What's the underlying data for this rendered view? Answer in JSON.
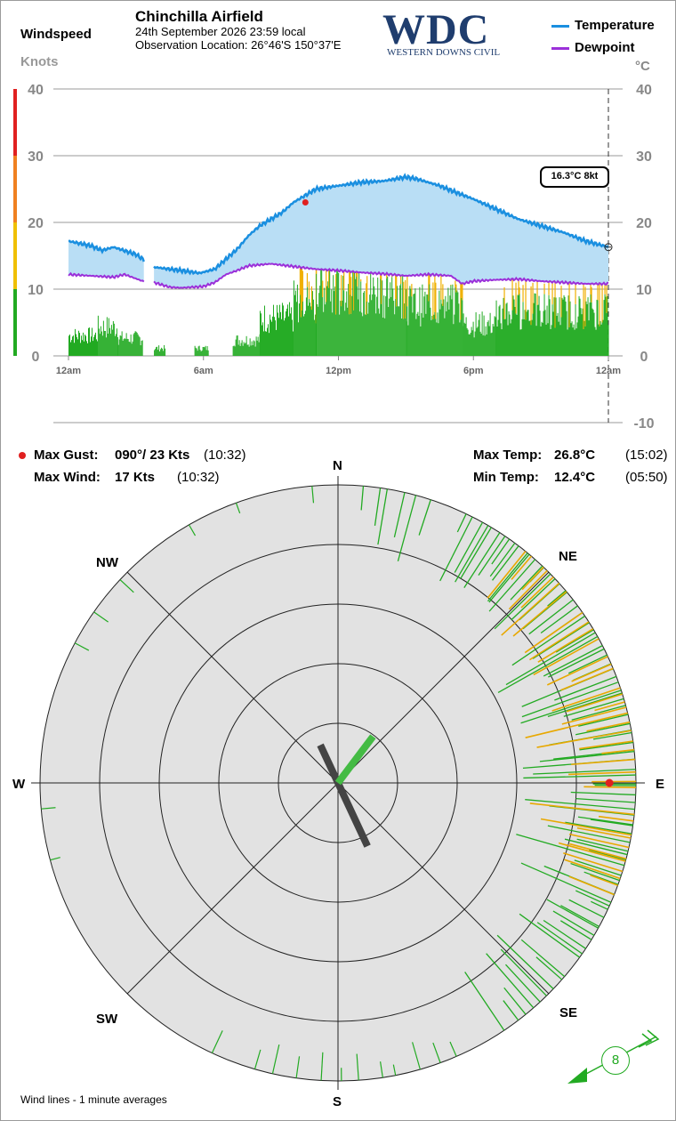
{
  "header": {
    "windspeed_label": "Windspeed",
    "knots_label": "Knots",
    "station_name": "Chinchilla Airfield",
    "date_line": "24th September 2026  23:59 local",
    "location_line": "Observation Location:  26°46'S 150°37'E",
    "logo_text": "WDC",
    "logo_subtext": "WESTERN DOWNS CIVIL",
    "logo_color": "#1f3d6e",
    "legend": [
      {
        "label": "Temperature",
        "color": "#1a8fe0"
      },
      {
        "label": "Dewpoint",
        "color": "#9b30d9"
      }
    ],
    "temp_unit": "°C"
  },
  "current_readout": "16.3°C  8kt",
  "stats": {
    "max_gust_label": "Max Gust:",
    "max_gust_value": "090°/  23 Kts",
    "max_gust_time": "(10:32)",
    "max_wind_label": "Max Wind:",
    "max_wind_value": "17 Kts",
    "max_wind_time": "(10:32)",
    "max_temp_label": "Max Temp:",
    "max_temp_value": "26.8°C",
    "max_temp_time": "(15:02)",
    "min_temp_label": "Min Temp:",
    "min_temp_value": "12.4°C",
    "min_temp_time": "(05:50)"
  },
  "compass": {
    "labels": {
      "n": "N",
      "ne": "NE",
      "e": "E",
      "se": "SE",
      "s": "S",
      "sw": "SW",
      "w": "W",
      "nw": "NW"
    },
    "footer_note": "Wind lines - 1 minute averages",
    "current_speed": "8",
    "max_gust_dir_deg": 90,
    "max_gust_kts": 23,
    "max_wind_kts": 17,
    "resultant_dir_deg": 155,
    "resultant_len": 0.52,
    "green_vector_dir_deg": 37,
    "green_vector_len": 0.28,
    "ring_knots": [
      5,
      10,
      15,
      20
    ],
    "current_dir_deg": 240
  },
  "chart_data": {
    "type": "line",
    "x_ticks": [
      "12am",
      "6am",
      "12pm",
      "6pm",
      "12am"
    ],
    "x_tick_hours": [
      0,
      6,
      12,
      18,
      24
    ],
    "y_left_ticks": [
      0,
      10,
      20,
      30,
      40
    ],
    "y_right_ticks": [
      40,
      30,
      20,
      10,
      0,
      -10
    ],
    "ylim_left": [
      0,
      40
    ],
    "ylim_right": [
      -10,
      40
    ],
    "windspeed_color_bands": [
      {
        "from": 0,
        "to": 10,
        "color": "#22aa22"
      },
      {
        "from": 10,
        "to": 20,
        "color": "#f0c000"
      },
      {
        "from": 20,
        "to": 30,
        "color": "#f08020"
      },
      {
        "from": 30,
        "to": 40,
        "color": "#e02020"
      }
    ],
    "series": [
      {
        "name": "Temperature",
        "color": "#1a8fe0",
        "x": [
          0,
          1,
          1.5,
          2,
          3,
          3.3,
          3.8,
          4.5,
          5,
          5.83,
          6.5,
          7,
          7.5,
          8,
          8.5,
          9,
          9.5,
          10,
          10.5,
          11,
          12,
          13,
          14,
          14.5,
          15,
          15.5,
          16,
          16.5,
          17,
          18,
          19,
          20,
          21,
          22,
          23,
          24
        ],
        "y": [
          17.2,
          16.5,
          15.8,
          16.3,
          15.2,
          14.5,
          13.3,
          13,
          12.8,
          12.4,
          13,
          14.5,
          16,
          18,
          19.5,
          20.5,
          21.5,
          23,
          24,
          25,
          25.5,
          26,
          26.2,
          26.5,
          26.8,
          26.5,
          26,
          25.5,
          24.8,
          23.5,
          22,
          20.5,
          19.5,
          18.5,
          17.2,
          16.3
        ],
        "gap_hours": [
          3.35,
          3.8
        ]
      },
      {
        "name": "Dewpoint",
        "color": "#9b30d9",
        "x": [
          0,
          1,
          2,
          2.5,
          3.3,
          3.8,
          4.5,
          5,
          6,
          6.5,
          7,
          7.5,
          8,
          9,
          10,
          11,
          12,
          13,
          14,
          15,
          16,
          17,
          17.5,
          18,
          19,
          20,
          21,
          22,
          23,
          24
        ],
        "y": [
          12.2,
          12,
          11.8,
          12.2,
          11.2,
          11,
          10.3,
          10.2,
          10.4,
          11,
          12.2,
          12.8,
          13.5,
          13.8,
          13.4,
          13,
          12.8,
          12.5,
          12.3,
          12,
          12.2,
          12,
          10.8,
          11.2,
          11.4,
          11.5,
          11.2,
          11,
          10.8,
          10.8
        ],
        "gap_hours": [
          3.35,
          3.8
        ]
      }
    ],
    "wind_segments": [
      {
        "from": 0,
        "to": 1.3,
        "avg": 3.2,
        "peak": 4.5
      },
      {
        "from": 1.3,
        "to": 2.2,
        "avg": 4.5,
        "peak": 7
      },
      {
        "from": 2.2,
        "to": 3.3,
        "avg": 2.8,
        "peak": 5
      },
      {
        "from": 3.8,
        "to": 4.3,
        "avg": 1.2,
        "peak": 2.5
      },
      {
        "from": 5.6,
        "to": 6.2,
        "avg": 1.2,
        "peak": 2
      },
      {
        "from": 7.3,
        "to": 8.5,
        "avg": 2.5,
        "peak": 4.5
      },
      {
        "from": 8.5,
        "to": 10,
        "avg": 6,
        "peak": 9
      },
      {
        "from": 10,
        "to": 11,
        "avg": 8.5,
        "peak": 17
      },
      {
        "from": 11,
        "to": 15,
        "avg": 10,
        "peak": 16
      },
      {
        "from": 15,
        "to": 17.5,
        "avg": 8,
        "peak": 16
      },
      {
        "from": 17.5,
        "to": 19,
        "avg": 5,
        "peak": 9
      },
      {
        "from": 19,
        "to": 24,
        "avg": 7,
        "peak": 12
      }
    ],
    "max_gust_hour": 10.53,
    "max_gust_kts": 23,
    "current_temp": 16.3
  }
}
